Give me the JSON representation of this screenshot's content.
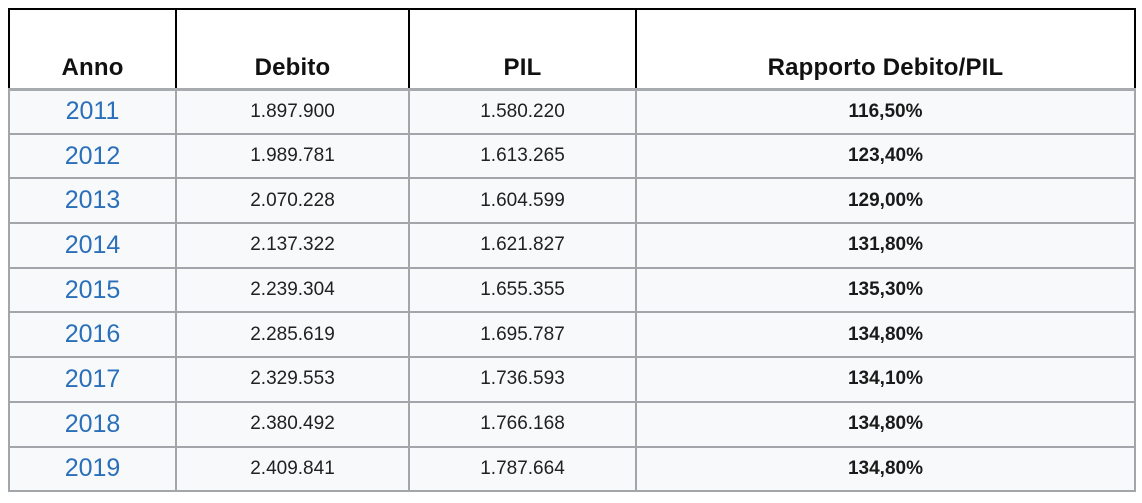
{
  "table": {
    "headers": [
      "Anno",
      "Debito",
      "PIL",
      "Rapporto Debito/PIL"
    ],
    "rows": [
      {
        "anno": "2011",
        "debito": "1.897.900",
        "pil": "1.580.220",
        "rapporto": "116,50%"
      },
      {
        "anno": "2012",
        "debito": "1.989.781",
        "pil": "1.613.265",
        "rapporto": "123,40%"
      },
      {
        "anno": "2013",
        "debito": "2.070.228",
        "pil": "1.604.599",
        "rapporto": "129,00%"
      },
      {
        "anno": "2014",
        "debito": "2.137.322",
        "pil": "1.621.827",
        "rapporto": "131,80%"
      },
      {
        "anno": "2015",
        "debito": "2.239.304",
        "pil": "1.655.355",
        "rapporto": "135,30%"
      },
      {
        "anno": "2016",
        "debito": "2.285.619",
        "pil": "1.695.787",
        "rapporto": "134,80%"
      },
      {
        "anno": "2017",
        "debito": "2.329.553",
        "pil": "1.736.593",
        "rapporto": "134,10%"
      },
      {
        "anno": "2018",
        "debito": "2.380.492",
        "pil": "1.766.168",
        "rapporto": "134,80%"
      },
      {
        "anno": "2019",
        "debito": "2.409.841",
        "pil": "1.787.664",
        "rapporto": "134,80%"
      }
    ],
    "colors": {
      "year_link_blue": "#2a6fb9",
      "row_background": "#f8f9fa",
      "header_background": "#ffffff",
      "header_border": "#000000",
      "data_border": "#a2a6ab",
      "text": "#202122"
    }
  },
  "chart_data": {
    "type": "table",
    "columns": [
      "Anno",
      "Debito",
      "PIL",
      "Rapporto Debito/PIL"
    ],
    "rows": [
      [
        "2011",
        "1.897.900",
        "1.580.220",
        "116,50%"
      ],
      [
        "2012",
        "1.989.781",
        "1.613.265",
        "123,40%"
      ],
      [
        "2013",
        "2.070.228",
        "1.604.599",
        "129,00%"
      ],
      [
        "2014",
        "2.137.322",
        "1.621.827",
        "131,80%"
      ],
      [
        "2015",
        "2.239.304",
        "1.655.355",
        "135,30%"
      ],
      [
        "2016",
        "2.285.619",
        "1.695.787",
        "134,80%"
      ],
      [
        "2017",
        "2.329.553",
        "1.736.593",
        "134,10%"
      ],
      [
        "2018",
        "2.380.492",
        "1.766.168",
        "134,80%"
      ],
      [
        "2019",
        "2.409.841",
        "1.787.664",
        "134,80%"
      ]
    ],
    "numeric": {
      "anno": [
        2011,
        2012,
        2013,
        2014,
        2015,
        2016,
        2017,
        2018,
        2019
      ],
      "debito": [
        1897900,
        1989781,
        2070228,
        2137322,
        2239304,
        2285619,
        2329553,
        2380492,
        2409841
      ],
      "pil": [
        1580220,
        1613265,
        1604599,
        1621827,
        1655355,
        1695787,
        1736593,
        1766168,
        1787664
      ],
      "rapporto_pct": [
        116.5,
        123.4,
        129.0,
        131.8,
        135.3,
        134.8,
        134.1,
        134.8,
        134.8
      ]
    }
  }
}
